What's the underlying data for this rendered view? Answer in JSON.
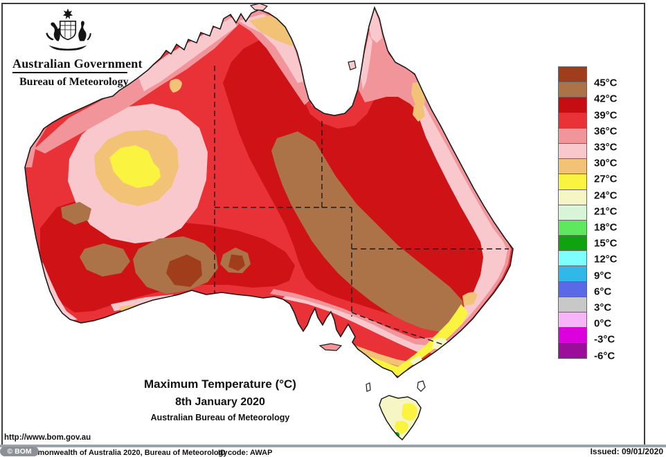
{
  "header": {
    "gov_title": "Australian Government",
    "bureau_title": "Bureau of Meteorology",
    "crest_icon": "australian-coat-of-arms"
  },
  "caption": {
    "title": "Maximum Temperature (°C)",
    "date": "8th January 2020",
    "org": "Australian Bureau of Meteorology"
  },
  "legend": {
    "unit": "°C",
    "colors": [
      "#A03E1C",
      "#AC7248",
      "#C60D12",
      "#E93238",
      "#F2959A",
      "#F8C8CC",
      "#F2C276",
      "#FAF440",
      "#F5F5C6",
      "#D8F5D8",
      "#5FE85F",
      "#0FA30F",
      "#7FFEFE",
      "#2FB8E8",
      "#5A6AE7",
      "#C8C8C8",
      "#F7B5F7",
      "#DC00DC",
      "#990F99"
    ],
    "labels": [
      "45°C",
      "42°C",
      "39°C",
      "36°C",
      "33°C",
      "30°C",
      "27°C",
      "24°C",
      "21°C",
      "18°C",
      "15°C",
      "12°C",
      "9°C",
      "6°C",
      "3°C",
      "0°C",
      "-3°C",
      "-6°C"
    ]
  },
  "footer": {
    "url": "http://www.bom.gov.au",
    "watermark": "© BOM",
    "copyright": "Commonwealth of Australia 2020, Bureau of Meteorology",
    "id_code": "ID code: AWAP",
    "issued": "Issued: 09/01/2020"
  },
  "palette": {
    "t45plus": "#A03E1C",
    "t42_45": "#AC7248",
    "t39_42": "#CE1216",
    "t36_39": "#E93238",
    "t33_36": "#F2959A",
    "t30_33": "#F8C8CC",
    "t27_30": "#F2C276",
    "t24_27": "#FAF440",
    "t21_24": "#F5F5C6",
    "t18_21": "#D8F5D8",
    "t12_15": "#0FA30F",
    "coast": "#1a1a1a"
  },
  "chart_data": {
    "type": "heatmap",
    "title": "Maximum Temperature (°C)",
    "subtitle": "8th January 2020",
    "source": "Australian Bureau of Meteorology",
    "scale_boundaries_c": [
      45,
      42,
      39,
      36,
      33,
      30,
      27,
      24,
      21,
      18,
      15,
      12,
      9,
      6,
      3,
      0,
      -3,
      -6
    ],
    "scale_colors_high_to_low": [
      "#A03E1C",
      "#AC7248",
      "#C60D12",
      "#E93238",
      "#F2959A",
      "#F8C8CC",
      "#F2C276",
      "#FAF440",
      "#F5F5C6",
      "#D8F5D8",
      "#5FE85F",
      "#0FA30F",
      "#7FFEFE",
      "#2FB8E8",
      "#5A6AE7",
      "#C8C8C8",
      "#F7B5F7",
      "#DC00DC",
      "#990F99"
    ],
    "legend_position": "right",
    "map_summary": [
      {
        "region": "central interior (NT/SA/QLD border region, diagonal NW-SE band)",
        "band_c": "42-45"
      },
      {
        "region": "southern inland Western Australia (several patches)",
        "band_c": "42-45 with 45+ cores"
      },
      {
        "region": "broad inland ring around centre, NT and inland QLD/NSW",
        "band_c": "39-42"
      },
      {
        "region": "most remaining mainland interior",
        "band_c": "36-39"
      },
      {
        "region": "north-west, northern and eastern coastal bands",
        "band_c": "33-36 and 30-33"
      },
      {
        "region": "Top End north coast and parts of QLD coast",
        "band_c": "27-30"
      },
      {
        "region": "inland WA anomaly (cool patch)",
        "band_c": "24-30 rings with 24-27 core"
      },
      {
        "region": "Victorian and SE NSW coast",
        "band_c": "24-30"
      },
      {
        "region": "Tasmania",
        "band_c": "21-27 with small 12-15 spot in far south"
      }
    ]
  }
}
